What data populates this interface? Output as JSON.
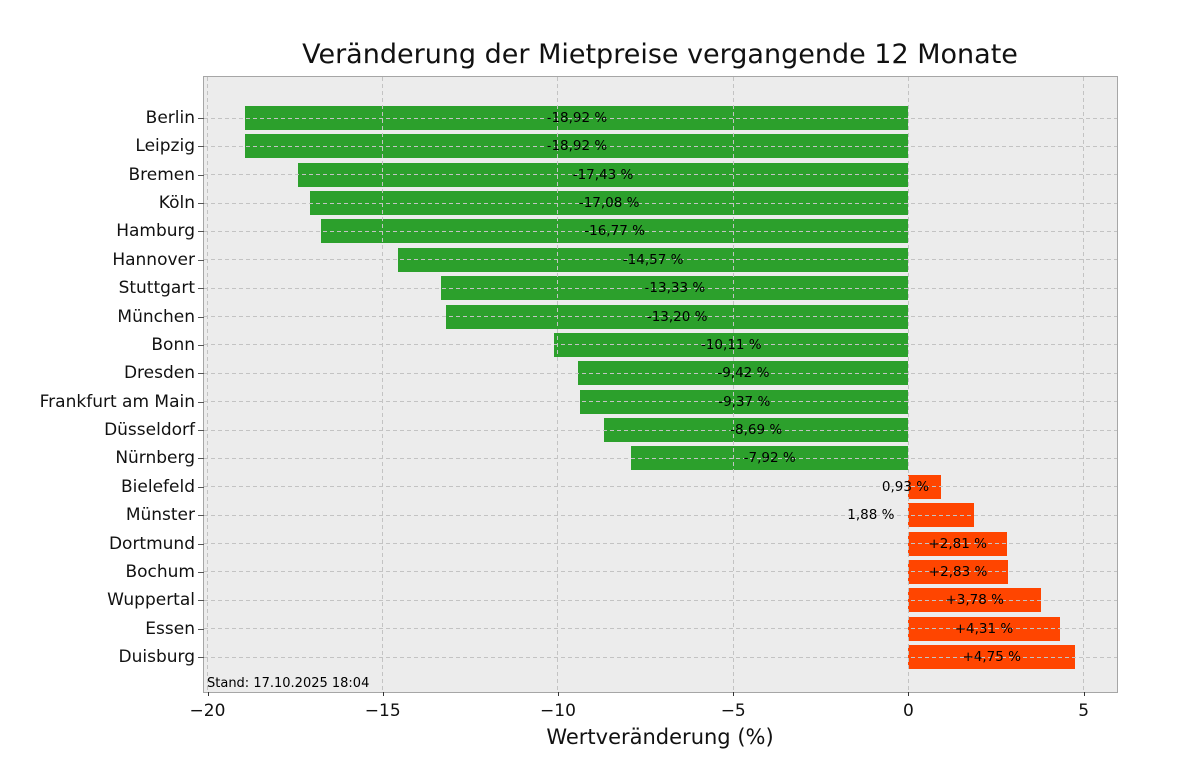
{
  "figure": {
    "title": "Veränderung der Mietpreise vergangende 12 Monate",
    "xlabel": "Wertveränderung (%)",
    "footnote": "Stand: 17.10.2025 18:04"
  },
  "colors": {
    "negative_bar": "#2ca02c",
    "positive_bar": "#ff4500",
    "plot_background": "#ececec",
    "grid": "#c3c3c3",
    "spine": "#a6a6a6",
    "text": "#000000"
  },
  "chart_data": {
    "type": "bar",
    "orientation": "horizontal",
    "title": "Veränderung der Mietpreise vergangende 12 Monate",
    "xlabel": "Wertveränderung (%)",
    "ylabel": "",
    "annotation": "Stand: 17.10.2025 18:04",
    "xlim": [
      -20.1,
      5.95
    ],
    "xticks": [
      -20,
      -15,
      -10,
      -5,
      0,
      5
    ],
    "xtick_labels": [
      "−20",
      "−15",
      "−10",
      "−5",
      "0",
      "5"
    ],
    "grid": true,
    "legend": false,
    "categories": [
      "Berlin",
      "Leipzig",
      "Bremen",
      "Köln",
      "Hamburg",
      "Hannover",
      "Stuttgart",
      "München",
      "Bonn",
      "Dresden",
      "Frankfurt am Main",
      "Düsseldorf",
      "Nürnberg",
      "Bielefeld",
      "Münster",
      "Dortmund",
      "Bochum",
      "Wuppertal",
      "Essen",
      "Duisburg"
    ],
    "values": [
      -18.92,
      -18.92,
      -17.43,
      -17.08,
      -16.77,
      -14.57,
      -13.33,
      -13.2,
      -10.11,
      -9.42,
      -9.37,
      -8.69,
      -7.92,
      0.93,
      1.88,
      2.81,
      2.83,
      3.78,
      4.31,
      4.75
    ],
    "rows": [
      {
        "city": "Berlin",
        "value": -18.92,
        "label": "-18,92 %",
        "label_placement": "center"
      },
      {
        "city": "Leipzig",
        "value": -18.92,
        "label": "-18,92 %",
        "label_placement": "center"
      },
      {
        "city": "Bremen",
        "value": -17.43,
        "label": "-17,43 %",
        "label_placement": "center"
      },
      {
        "city": "Köln",
        "value": -17.08,
        "label": "-17,08 %",
        "label_placement": "center"
      },
      {
        "city": "Hamburg",
        "value": -16.77,
        "label": "-16,77 %",
        "label_placement": "center"
      },
      {
        "city": "Hannover",
        "value": -14.57,
        "label": "-14,57 %",
        "label_placement": "center"
      },
      {
        "city": "Stuttgart",
        "value": -13.33,
        "label": "-13,33 %",
        "label_placement": "center"
      },
      {
        "city": "München",
        "value": -13.2,
        "label": "-13,20 %",
        "label_placement": "center"
      },
      {
        "city": "Bonn",
        "value": -10.11,
        "label": "-10,11 %",
        "label_placement": "center"
      },
      {
        "city": "Dresden",
        "value": -9.42,
        "label": "-9,42 %",
        "label_placement": "center"
      },
      {
        "city": "Frankfurt am Main",
        "value": -9.37,
        "label": "-9,37 %",
        "label_placement": "center"
      },
      {
        "city": "Düsseldorf",
        "value": -8.69,
        "label": "-8,69 %",
        "label_placement": "center"
      },
      {
        "city": "Nürnberg",
        "value": -7.92,
        "label": "-7,92 %",
        "label_placement": "center"
      },
      {
        "city": "Bielefeld",
        "value": 0.93,
        "label": "0,93 %",
        "label_placement": "zero"
      },
      {
        "city": "Münster",
        "value": 1.88,
        "label": "1,88 %",
        "label_placement": "outside-left"
      },
      {
        "city": "Dortmund",
        "value": 2.81,
        "label": "+2,81 %",
        "label_placement": "center"
      },
      {
        "city": "Bochum",
        "value": 2.83,
        "label": "+2,83 %",
        "label_placement": "center"
      },
      {
        "city": "Wuppertal",
        "value": 3.78,
        "label": "+3,78 %",
        "label_placement": "center"
      },
      {
        "city": "Essen",
        "value": 4.31,
        "label": "+4,31 %",
        "label_placement": "center"
      },
      {
        "city": "Duisburg",
        "value": 4.75,
        "label": "+4,75 %",
        "label_placement": "center"
      }
    ]
  }
}
